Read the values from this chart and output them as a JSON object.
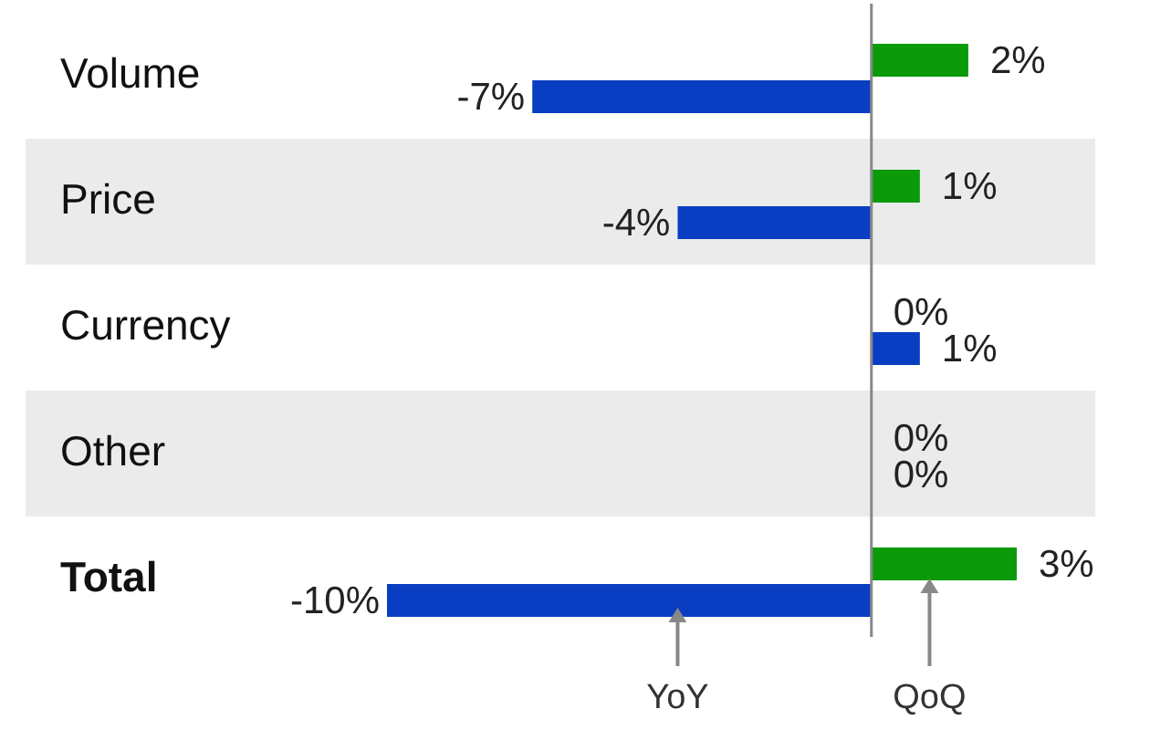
{
  "chart_data": {
    "type": "bar",
    "orientation": "horizontal",
    "categories": [
      "Volume",
      "Price",
      "Currency",
      "Other",
      "Total"
    ],
    "series": [
      {
        "name": "QoQ",
        "color": "#0a9a0a",
        "values": [
          2,
          1,
          0,
          0,
          3
        ],
        "value_labels": [
          "2%",
          "1%",
          "0%",
          "0%",
          "3%"
        ]
      },
      {
        "name": "YoY",
        "color": "#0a3ec2",
        "values": [
          -7,
          -4,
          1,
          0,
          -10
        ],
        "value_labels": [
          "-7%",
          "-4%",
          "1%",
          "0%",
          "-10%"
        ]
      }
    ]
  }
}
